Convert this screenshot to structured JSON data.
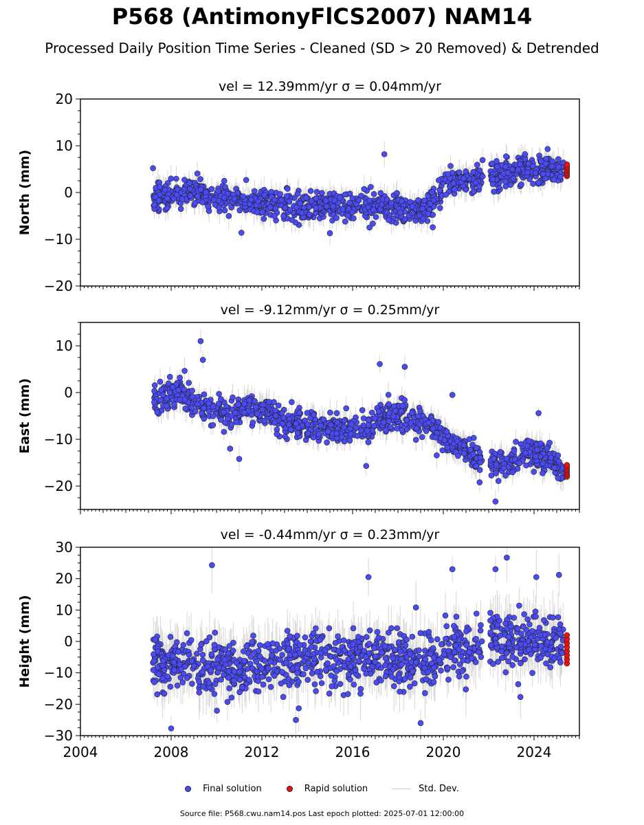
{
  "figure": {
    "title": "P568 (AntimonyFlCS2007) NAM14",
    "subtitle": "Processed Daily Position Time Series - Cleaned (SD > 20 Removed) & Detrended",
    "footnote": "Source file: P568.cwu.nam14.pos  Last epoch plotted: 2025-07-01 12:00:00"
  },
  "legend": {
    "final_label": "Final solution",
    "rapid_label": "Rapid solution",
    "std_label": "Std. Dev."
  },
  "colors": {
    "final": "#4b4bf5",
    "rapid": "#ee1111",
    "std": "#c9c9c9",
    "marker_edge": "#222222"
  },
  "chart_data": [
    {
      "type": "scatter",
      "title": "vel = 12.39mm/yr   σ = 0.04mm/yr",
      "ylabel": "North (mm)",
      "xlim": [
        2004,
        2026
      ],
      "ylim": [
        -20,
        20
      ],
      "yticks": [
        -20,
        -10,
        0,
        10,
        20
      ],
      "ytick_labels": [
        "−20",
        "−10",
        "0",
        "10",
        "20"
      ],
      "series": [
        {
          "name": "Final solution",
          "x": [
            2007.2,
            2008.0,
            2008.6,
            2009.5,
            2010.3,
            2011.0,
            2012.0,
            2013.0,
            2014.0,
            2015.0,
            2016.0,
            2017.0,
            2018.0,
            2018.8,
            2019.2,
            2019.6,
            2020.0,
            2020.5,
            2021.0,
            2021.6,
            2022.2,
            2022.7,
            2023.2,
            2023.8,
            2024.3,
            2024.8,
            2025.3
          ],
          "y": [
            -1.0,
            -0.5,
            0.5,
            -1.0,
            -1.5,
            -2.0,
            -2.5,
            -3.0,
            -3.0,
            -3.0,
            -3.0,
            -3.0,
            -3.0,
            -3.5,
            -3.5,
            -1.0,
            1.5,
            2.5,
            3.0,
            3.0,
            3.5,
            4.0,
            4.5,
            5.0,
            5.0,
            5.0,
            4.5
          ],
          "spread": 2.0
        },
        {
          "name": "Rapid solution",
          "x": [
            2025.4,
            2025.5
          ],
          "y": [
            3.5,
            6.0
          ]
        }
      ],
      "outliers": [
        [
          2007.2,
          5.2
        ],
        [
          2017.4,
          8.2
        ],
        [
          2011.1,
          -8.6
        ],
        [
          2015.0,
          -8.7
        ],
        [
          2024.6,
          9.3
        ],
        [
          2023.6,
          8.2
        ]
      ]
    },
    {
      "type": "scatter",
      "title": "vel = -9.12mm/yr   σ = 0.25mm/yr",
      "ylabel": "East (mm)",
      "xlim": [
        2004,
        2026
      ],
      "ylim": [
        -25,
        15
      ],
      "yticks": [
        -20,
        -10,
        0,
        10
      ],
      "ytick_labels": [
        "−20",
        "−10",
        "0",
        "10"
      ],
      "series": [
        {
          "name": "Final solution",
          "x": [
            2007.2,
            2007.8,
            2008.3,
            2008.8,
            2009.5,
            2010.3,
            2011.0,
            2011.5,
            2012.0,
            2012.5,
            2013.0,
            2013.5,
            2014.0,
            2015.0,
            2016.0,
            2016.8,
            2017.2,
            2017.8,
            2018.5,
            2019.2,
            2019.6,
            2020.2,
            2020.8,
            2021.5,
            2022.2,
            2022.8,
            2023.3,
            2023.8,
            2024.3,
            2024.8,
            2025.3
          ],
          "y": [
            -1.5,
            -1.0,
            1.0,
            -1.5,
            -3.0,
            -4.5,
            -4.0,
            -3.0,
            -4.0,
            -5.0,
            -6.0,
            -6.5,
            -7.0,
            -7.5,
            -7.5,
            -7.5,
            -5.5,
            -5.0,
            -5.5,
            -6.0,
            -8.0,
            -10.5,
            -12.0,
            -13.5,
            -15.0,
            -15.5,
            -13.5,
            -13.0,
            -13.5,
            -15.0,
            -16.5
          ],
          "spread": 2.0
        },
        {
          "name": "Rapid solution",
          "x": [
            2025.4,
            2025.5
          ],
          "y": [
            -18.0,
            -15.5
          ]
        }
      ],
      "outliers": [
        [
          2009.3,
          11.0
        ],
        [
          2009.4,
          7.0
        ],
        [
          2010.6,
          -12.0
        ],
        [
          2011.0,
          -14.2
        ],
        [
          2021.6,
          -19.2
        ],
        [
          2022.3,
          -23.3
        ],
        [
          2017.2,
          6.1
        ],
        [
          2018.3,
          5.5
        ],
        [
          2020.4,
          -0.5
        ],
        [
          2016.6,
          -15.7
        ],
        [
          2024.2,
          -4.4
        ]
      ]
    },
    {
      "type": "scatter",
      "title": "vel = -0.44mm/yr   σ = 0.23mm/yr",
      "ylabel": "Height (mm)",
      "xlim": [
        2004,
        2026
      ],
      "ylim": [
        -30,
        30
      ],
      "yticks": [
        -30,
        -20,
        -10,
        0,
        10,
        20,
        30
      ],
      "ytick_labels": [
        "−30",
        "−20",
        "−10",
        "0",
        "10",
        "20",
        "30"
      ],
      "xticks": [
        2004,
        2008,
        2012,
        2016,
        2020,
        2024
      ],
      "xtick_labels": [
        "2004",
        "2008",
        "2012",
        "2016",
        "2020",
        "2024"
      ],
      "series": [
        {
          "name": "Final solution",
          "x": [
            2007.2,
            2008.0,
            2009.0,
            2010.0,
            2011.0,
            2012.0,
            2013.0,
            2014.0,
            2015.0,
            2016.0,
            2017.0,
            2018.0,
            2019.0,
            2019.6,
            2020.2,
            2020.8,
            2021.5,
            2022.2,
            2022.8,
            2023.5,
            2024.2,
            2024.8,
            2025.3
          ],
          "y": [
            -7.0,
            -6.0,
            -7.0,
            -8.0,
            -8.0,
            -7.0,
            -6.0,
            -6.0,
            -7.0,
            -6.0,
            -6.0,
            -7.0,
            -6.0,
            -5.0,
            -3.0,
            -2.0,
            0.0,
            2.0,
            1.0,
            0.0,
            0.0,
            0.0,
            0.0
          ],
          "spread": 6.0
        },
        {
          "name": "Rapid solution",
          "x": [
            2025.4,
            2025.5
          ],
          "y": [
            -7.0,
            2.0
          ]
        }
      ],
      "outliers": [
        [
          2009.8,
          24.3
        ],
        [
          2016.7,
          20.5
        ],
        [
          2020.4,
          23.0
        ],
        [
          2022.8,
          26.7
        ],
        [
          2022.3,
          23.0
        ],
        [
          2024.1,
          20.5
        ],
        [
          2008.0,
          -27.7
        ],
        [
          2013.5,
          -25.0
        ],
        [
          2019.0,
          -26.0
        ],
        [
          2023.4,
          -17.7
        ],
        [
          2025.1,
          21.2
        ]
      ]
    }
  ]
}
